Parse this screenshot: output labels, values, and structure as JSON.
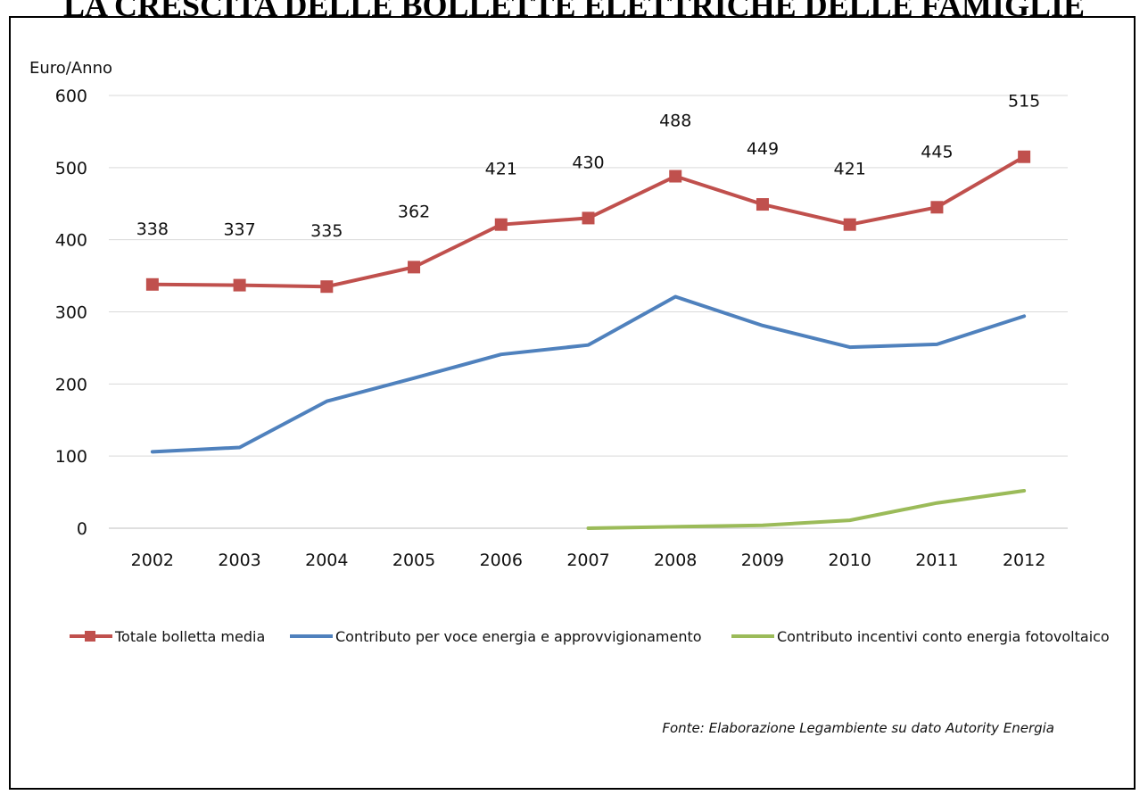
{
  "title": "LA CRESCITA DELLE BOLLETTE ELETTRICHE DELLE FAMIGLIE",
  "source": "Fonte: Elaborazione Legambiente su dato Autority Energia",
  "chart_data": {
    "type": "line",
    "title": "LA CRESCITA DELLE BOLLETTE ELETTRICHE DELLE FAMIGLIE",
    "ylabel": "Euro/Anno",
    "xlabel": "",
    "ylim": [
      0,
      600
    ],
    "yticks": [
      0,
      100,
      200,
      300,
      400,
      500,
      600
    ],
    "grid": true,
    "legend": "bottom",
    "categories": [
      "2002",
      "2003",
      "2004",
      "2005",
      "2006",
      "2007",
      "2008",
      "2009",
      "2010",
      "2011",
      "2012"
    ],
    "series": [
      {
        "name": "Totale bolletta media",
        "color": "#c0504d",
        "marker": "square",
        "labels": true,
        "values": [
          338,
          337,
          335,
          362,
          421,
          430,
          488,
          449,
          421,
          445,
          515
        ]
      },
      {
        "name": "Contributo per voce energia e approvvigionamento",
        "color": "#4f81bd",
        "marker": "none",
        "labels": false,
        "values": [
          106,
          112,
          176,
          208,
          241,
          254,
          321,
          281,
          251,
          255,
          294
        ]
      },
      {
        "name": "Contributo incentivi conto energia fotovoltaico",
        "color": "#9bbb59",
        "marker": "none",
        "labels": false,
        "values": [
          null,
          null,
          null,
          null,
          null,
          0,
          2,
          4,
          11,
          35,
          52
        ]
      }
    ]
  }
}
